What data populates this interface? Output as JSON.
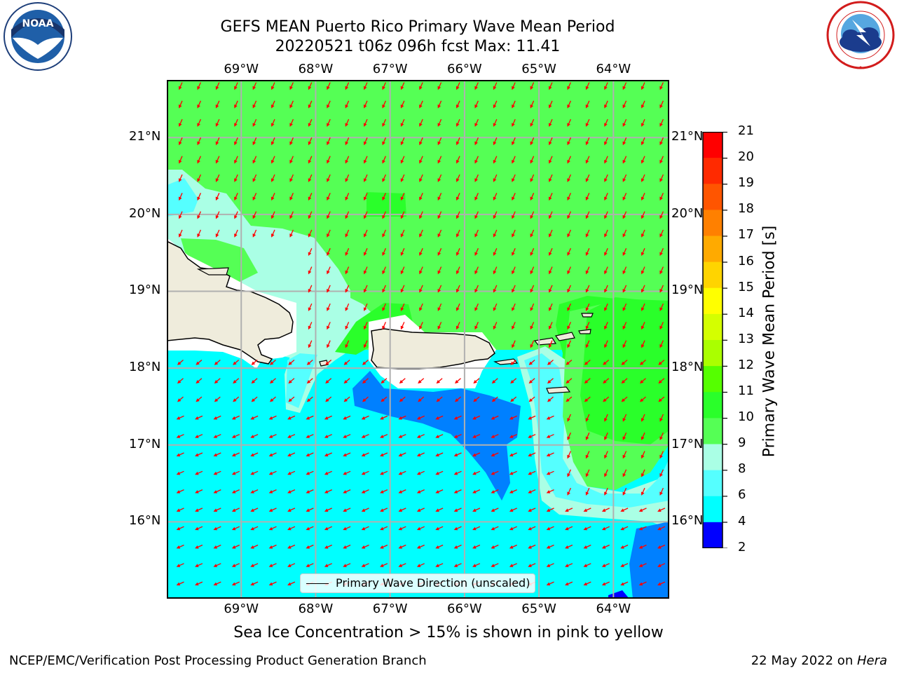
{
  "title": {
    "line1": "GEFS MEAN Puerto Rico Primary Wave Mean Period",
    "line2": "20220521 t06z 096h fcst   Max: 11.41"
  },
  "logos": {
    "noaa": {
      "text": "NOAA",
      "ring_text": "NATIONAL OCEANIC AND ATMOSPHERIC ADMINISTRATION · U.S. DEPARTMENT OF COMMERCE",
      "icon": "noaa-seal"
    },
    "nws": {
      "ring_text": "NATIONAL WEATHER SERVICE",
      "icon": "nws-seal"
    }
  },
  "map": {
    "x_ticks": [
      "69°W",
      "68°W",
      "67°W",
      "66°W",
      "65°W",
      "64°W"
    ],
    "y_ticks": [
      "21°N",
      "20°N",
      "19°N",
      "18°N",
      "17°N",
      "16°N"
    ],
    "lon_range": [
      -70.0,
      -63.25
    ],
    "lat_range": [
      15.0,
      21.75
    ],
    "land_color": "#efecdc",
    "arrow_color": "#ff0000",
    "grid": true,
    "legend_entry": "Primary Wave Direction (unscaled)"
  },
  "colorbar": {
    "title": "Primary Wave Mean Period [s]",
    "labels": [
      "21",
      "20",
      "19",
      "18",
      "17",
      "16",
      "15",
      "14",
      "13",
      "12",
      "11",
      "10",
      "9",
      "8",
      "6",
      "4",
      "2"
    ],
    "bins": [
      {
        "from": 20,
        "to": 21,
        "color": "#ff0000"
      },
      {
        "from": 19,
        "to": 20,
        "color": "#ff2a00"
      },
      {
        "from": 18,
        "to": 19,
        "color": "#ff5500"
      },
      {
        "from": 17,
        "to": 18,
        "color": "#ff8000"
      },
      {
        "from": 16,
        "to": 17,
        "color": "#ffaa00"
      },
      {
        "from": 15,
        "to": 16,
        "color": "#ffd400"
      },
      {
        "from": 14,
        "to": 15,
        "color": "#ffff00"
      },
      {
        "from": 13,
        "to": 14,
        "color": "#d4ff00"
      },
      {
        "from": 12,
        "to": 13,
        "color": "#aaff00"
      },
      {
        "from": 11,
        "to": 12,
        "color": "#55ff00"
      },
      {
        "from": 10,
        "to": 11,
        "color": "#2aff2a"
      },
      {
        "from": 9,
        "to": 10,
        "color": "#55ff55"
      },
      {
        "from": 8,
        "to": 9,
        "color": "#aaffe5"
      },
      {
        "from": 6,
        "to": 8,
        "color": "#55ffff"
      },
      {
        "from": 4,
        "to": 6,
        "color": "#00ffff"
      },
      {
        "from": 2,
        "to": 4,
        "color": "#0080ff"
      }
    ],
    "bottom_color": "#0000ff"
  },
  "note": "Sea Ice Concentration > 15% is shown in pink to yellow",
  "footer": {
    "left": "NCEP/EMC/Verification Post Processing Product Generation Branch",
    "date": "22 May 2022 on ",
    "host": "Hera"
  }
}
